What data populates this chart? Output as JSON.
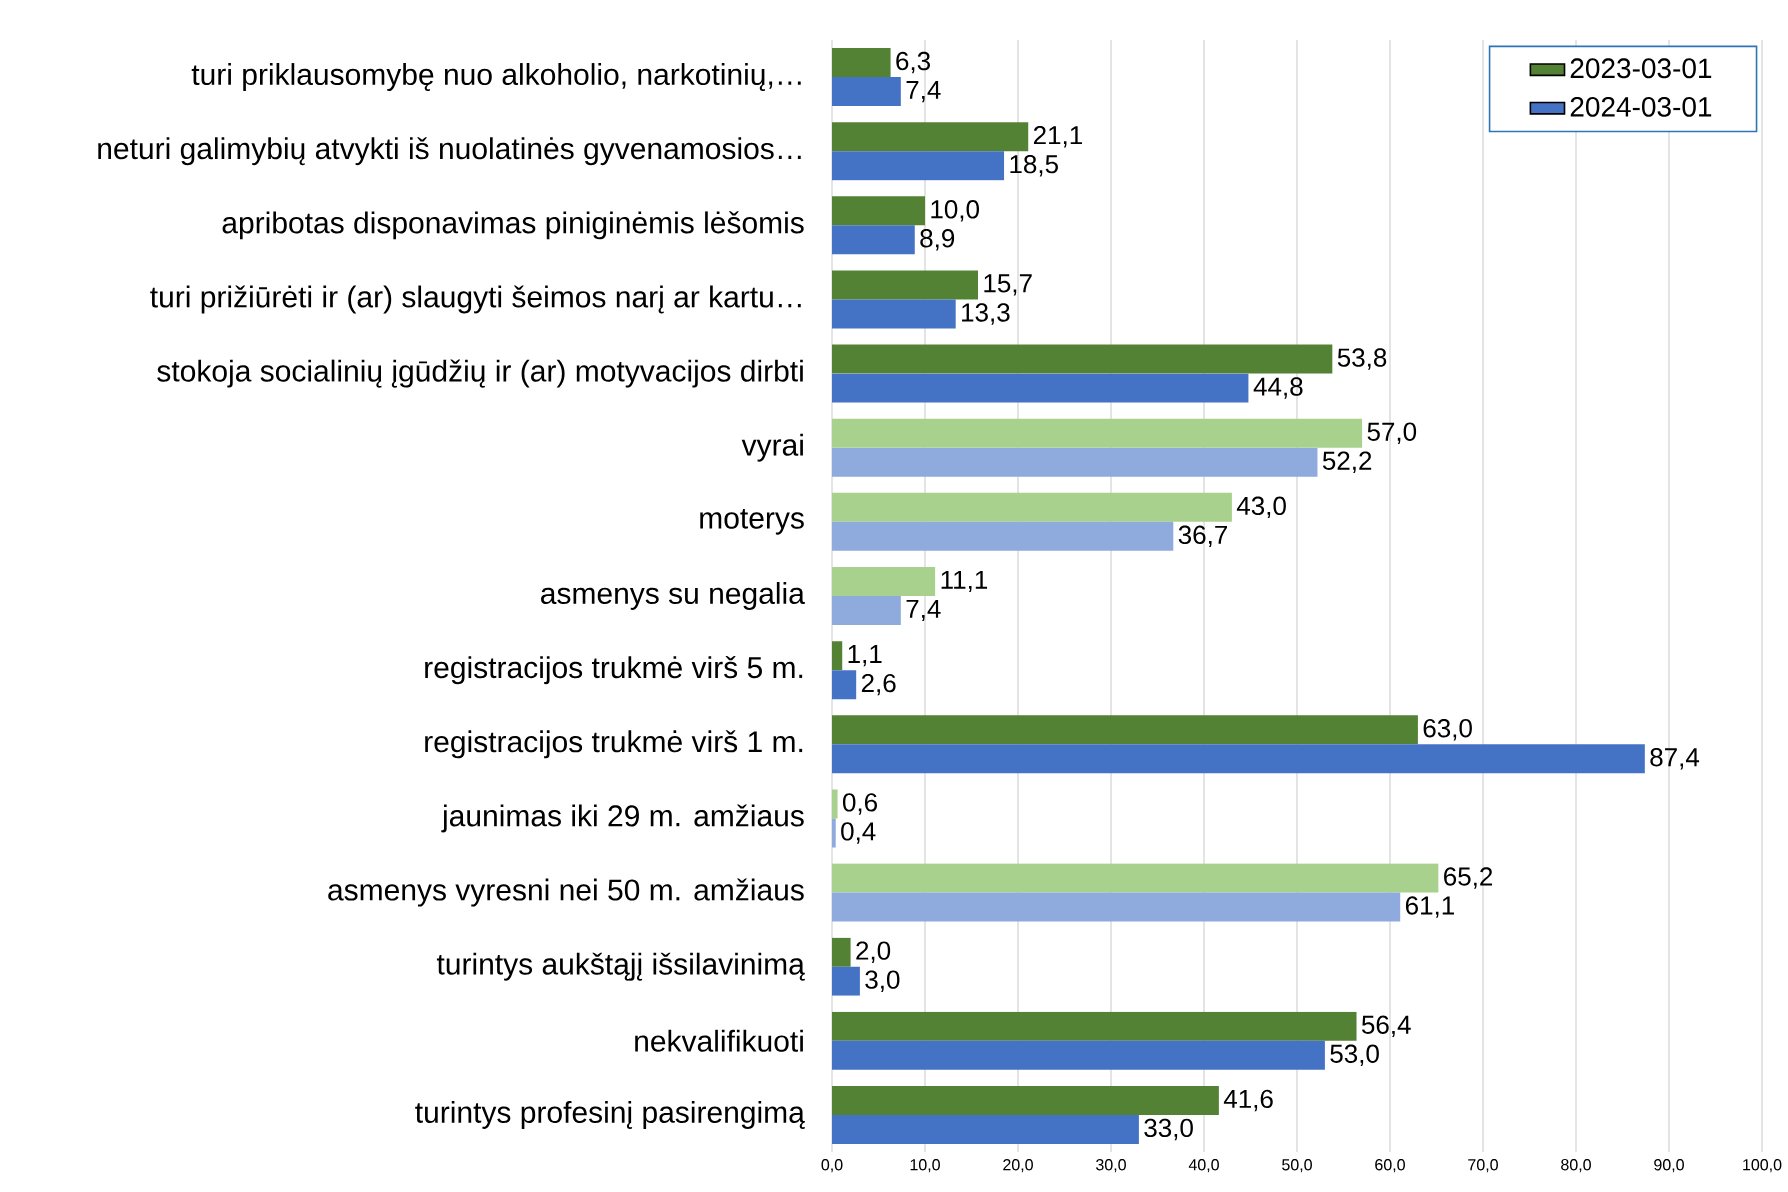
{
  "chart_data": {
    "type": "bar",
    "orientation": "horizontal",
    "categories": [
      "turi priklausomybę nuo alkoholio, narkotinių,…",
      "neturi galimybių atvykti iš nuolatinės gyvenamosios…",
      "apribotas disponavimas piniginėmis lėšomis",
      "turi prižiūrėti ir (ar) slaugyti šeimos narį ar kartu…",
      "stokoja socialinių įgūdžių ir (ar) motyvacijos dirbti",
      "vyrai",
      "moterys",
      "asmenys su negalia",
      "registracijos trukmė virš 5 m.",
      "registracijos trukmė virš 1 m.",
      "jaunimas iki 29 m. amžiaus",
      "asmenys vyresni nei 50 m. amžiaus",
      "turintys aukštąjį išsilavinimą",
      "nekvalifikuoti",
      "turintys profesinį pasirengimą"
    ],
    "series": [
      {
        "name": "2023-03-01",
        "color": "#548235",
        "values": [
          6.3,
          21.1,
          10.0,
          15.7,
          53.8,
          57.0,
          43.0,
          11.1,
          1.1,
          63.0,
          0.6,
          65.2,
          2.0,
          56.4,
          41.6
        ],
        "value_labels": [
          "6,3",
          "21,1",
          "10,0",
          "15,7",
          "53,8",
          "57,0",
          "43,0",
          "11,1",
          "1,1",
          "63,0",
          "0,6",
          "65,2",
          "2,0",
          "56,4",
          "41,6"
        ],
        "colors": [
          "#548235",
          "#548235",
          "#548235",
          "#548235",
          "#548235",
          "#a9d18e",
          "#a9d18e",
          "#a9d18e",
          "#548235",
          "#548235",
          "#a9d18e",
          "#a9d18e",
          "#548235",
          "#548235",
          "#548235"
        ]
      },
      {
        "name": "2024-03-01",
        "color": "#4472c4",
        "values": [
          7.4,
          18.5,
          8.9,
          13.3,
          44.8,
          52.2,
          36.7,
          7.4,
          2.6,
          87.4,
          0.4,
          61.1,
          3.0,
          53.0,
          33.0
        ],
        "value_labels": [
          "7,4",
          "18,5",
          "8,9",
          "13,3",
          "44,8",
          "52,2",
          "36,7",
          "7,4",
          "2,6",
          "87,4",
          "0,4",
          "61,1",
          "3,0",
          "53,0",
          "33,0"
        ],
        "colors": [
          "#4472c4",
          "#4472c4",
          "#4472c4",
          "#4472c4",
          "#4472c4",
          "#8faadc",
          "#8faadc",
          "#8faadc",
          "#4472c4",
          "#4472c4",
          "#8faadc",
          "#8faadc",
          "#4472c4",
          "#4472c4",
          "#4472c4"
        ]
      }
    ],
    "xlim": [
      0,
      100
    ],
    "xticks": [
      {
        "value": 0,
        "label": "0,0"
      },
      {
        "value": 10,
        "label": "10,0"
      },
      {
        "value": 20,
        "label": "20,0"
      },
      {
        "value": 30,
        "label": "30,0"
      },
      {
        "value": 40,
        "label": "40,0"
      },
      {
        "value": 50,
        "label": "50,0"
      },
      {
        "value": 60,
        "label": "60,0"
      },
      {
        "value": 70,
        "label": "70,0"
      },
      {
        "value": 80,
        "label": "80,0"
      },
      {
        "value": 90,
        "label": "90,0"
      },
      {
        "value": 100,
        "label": "100,0"
      }
    ],
    "grid": "x",
    "legend": "top right"
  }
}
